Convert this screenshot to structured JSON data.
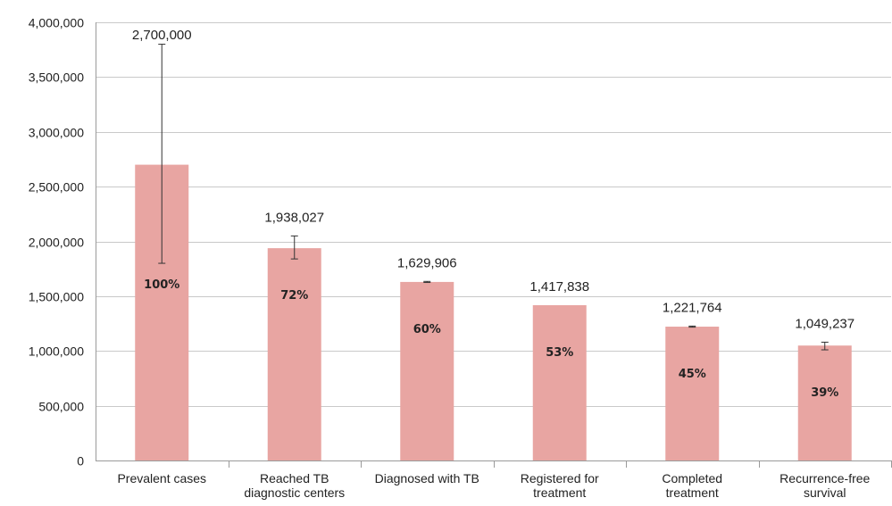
{
  "chart_data": {
    "type": "bar",
    "categories": [
      [
        "Prevalent cases"
      ],
      [
        "Reached TB",
        "diagnostic centers"
      ],
      [
        "Diagnosed with TB"
      ],
      [
        "Registered for",
        "treatment"
      ],
      [
        "Completed",
        "treatment"
      ],
      [
        "Recurrence-free",
        "survival"
      ]
    ],
    "values": [
      2700000,
      1938027,
      1629906,
      1417838,
      1221764,
      1049237
    ],
    "value_labels": [
      "2,700,000",
      "1,938,027",
      "1,629,906",
      "1,417,838",
      "1,221,764",
      "1,049,237"
    ],
    "percent_labels": [
      "100%",
      "72%",
      "60%",
      "53%",
      "45%",
      "39%"
    ],
    "error_bars": [
      {
        "low": 1800000,
        "high": 3800000
      },
      {
        "low": 1840000,
        "high": 2050000
      },
      {
        "low": 1625000,
        "high": 1635000
      },
      null,
      {
        "low": 1217000,
        "high": 1227000
      },
      {
        "low": 1010000,
        "high": 1080000
      }
    ],
    "ylim": [
      0,
      4000000
    ],
    "yticks": [
      0,
      500000,
      1000000,
      1500000,
      2000000,
      2500000,
      3000000,
      3500000,
      4000000
    ],
    "ytick_labels": [
      "0",
      "500,000",
      "1,000,000",
      "1,500,000",
      "2,000,000",
      "2,500,000",
      "3,000,000",
      "3,500,000",
      "4,000,000"
    ],
    "grid": true,
    "bar_color": "#e8a5a2",
    "grid_color": "#c9c9c9",
    "title": "",
    "xlabel": "",
    "ylabel": ""
  }
}
